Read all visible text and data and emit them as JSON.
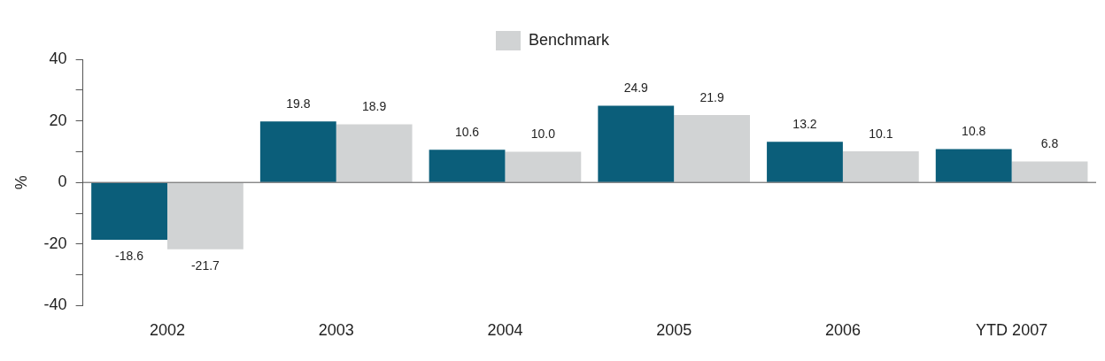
{
  "chart_data": {
    "type": "bar",
    "ylabel": "%",
    "categories": [
      "2002",
      "2003",
      "2004",
      "2005",
      "2006",
      "YTD 2007"
    ],
    "series": [
      {
        "color": "#0b5e7a",
        "values": [
          -18.6,
          19.8,
          10.6,
          24.9,
          13.2,
          10.8
        ],
        "value_labels": [
          "-18.6",
          "19.8",
          "10.6",
          "24.9",
          "13.2",
          "10.8"
        ]
      },
      {
        "name": "Benchmark",
        "color": "#d1d3d4",
        "values": [
          -21.7,
          18.9,
          10.0,
          21.9,
          10.1,
          6.8
        ],
        "value_labels": [
          "-21.7",
          "18.9",
          "10.0",
          "21.9",
          "10.1",
          "6.8"
        ]
      }
    ],
    "ylim": [
      -40,
      40
    ],
    "yticks": [
      -40,
      {
        "value": -30,
        "label": null
      },
      -20,
      {
        "value": -10,
        "label": null
      },
      0,
      {
        "value": 10,
        "label": null
      },
      20,
      {
        "value": 30,
        "label": null
      },
      40
    ],
    "ref_lines": [
      {
        "axis": "y",
        "value": 0,
        "color": "#555555"
      }
    ],
    "legend": "top",
    "grid": false
  }
}
